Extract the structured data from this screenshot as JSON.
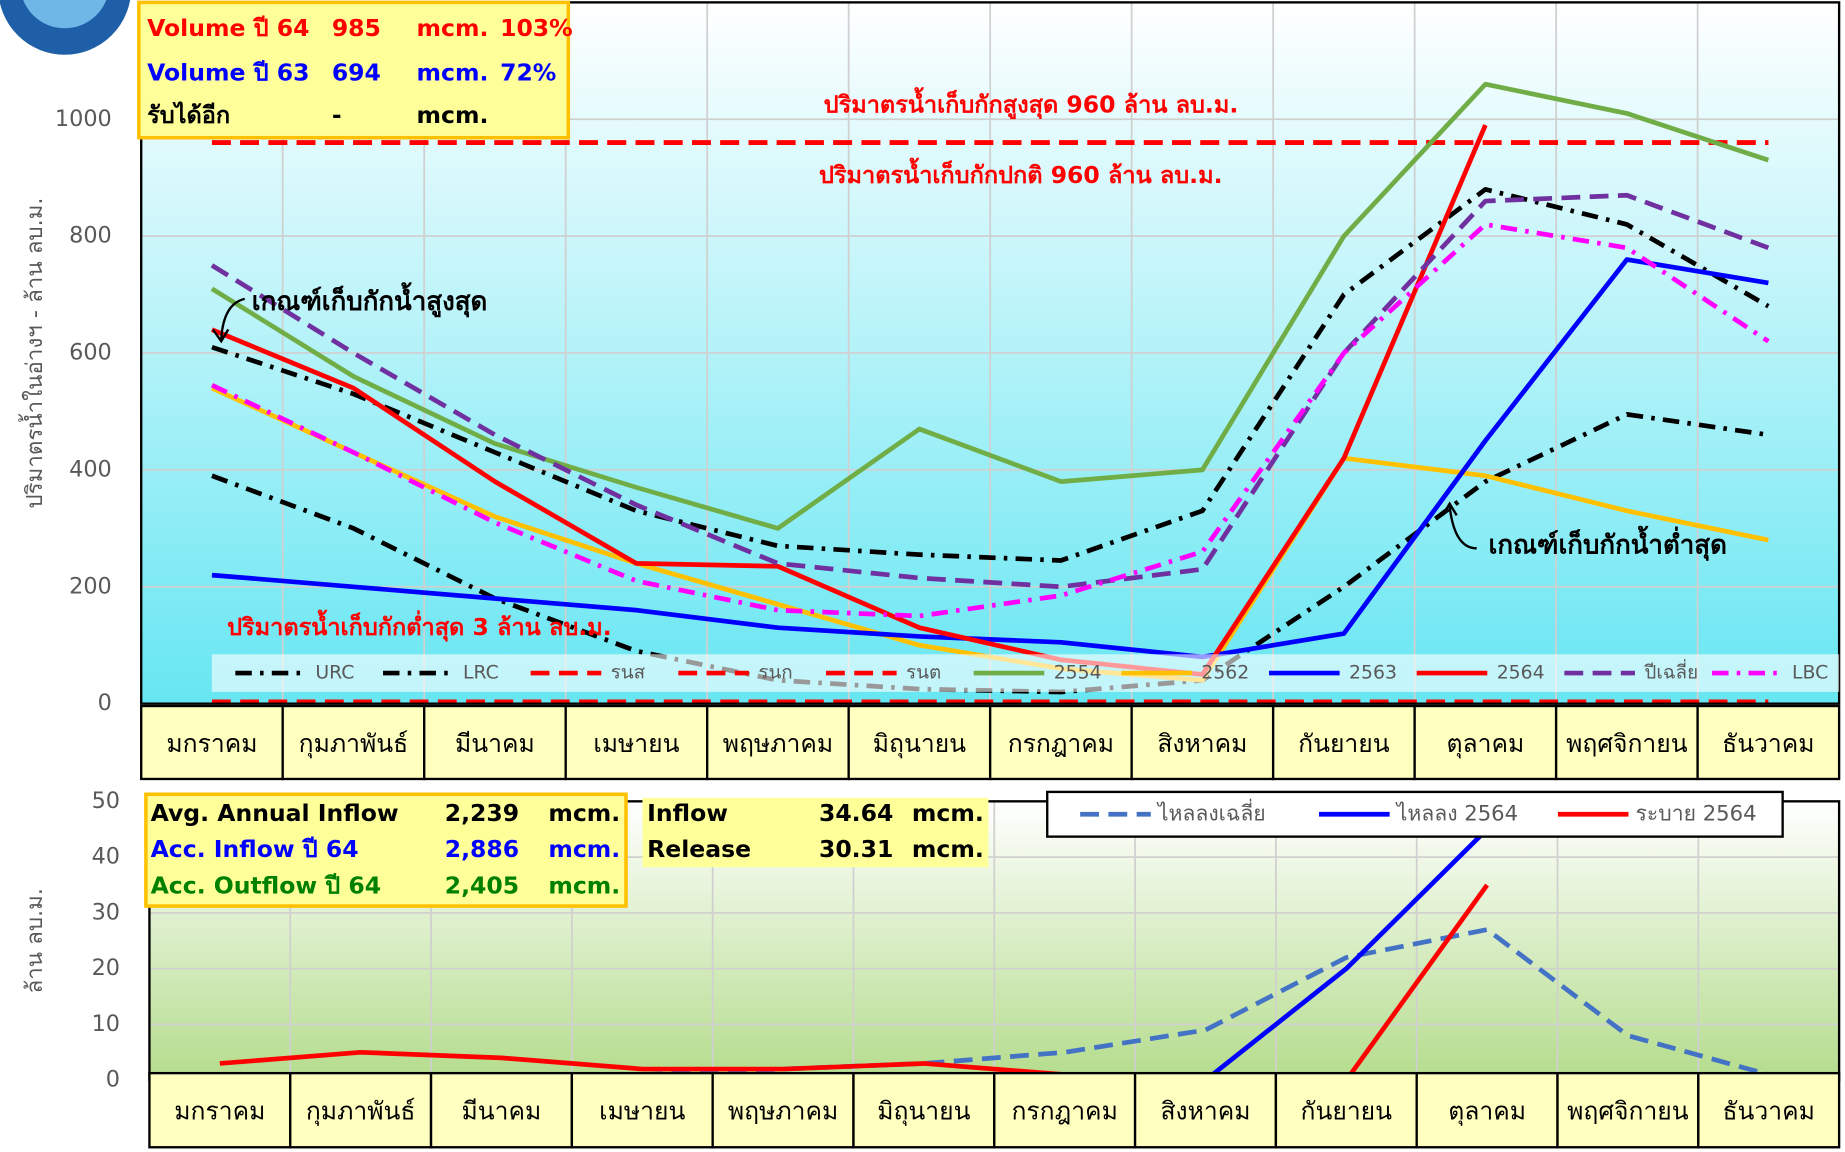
{
  "chart_data": [
    {
      "type": "line",
      "y_label": "ปริมาตรน้ำในอ่างฯ - ล้าน ลบ.ม.",
      "categories": [
        "มกราคม",
        "กุมภาพันธ์",
        "มีนาคม",
        "เมษายน",
        "พฤษภาคม",
        "มิถุนายน",
        "กรกฎาคม",
        "สิงหาคม",
        "กันยายน",
        "ตุลาคม",
        "พฤศจิกายน",
        "ธันวาคม"
      ],
      "ylim": [
        0,
        1200
      ],
      "yticks": [
        0,
        200,
        400,
        600,
        800,
        1000
      ],
      "grid": true,
      "series": [
        {
          "name": "URC",
          "color": "#000000",
          "style": "dashdot",
          "values": [
            610,
            530,
            430,
            330,
            270,
            255,
            245,
            330,
            700,
            880,
            820,
            680
          ]
        },
        {
          "name": "LRC",
          "color": "#000000",
          "style": "dashdot",
          "values": [
            390,
            300,
            180,
            90,
            40,
            25,
            20,
            40,
            200,
            380,
            495,
            460
          ]
        },
        {
          "name": "รนส",
          "color": "#ff0000",
          "style": "dashed",
          "values": [
            960,
            960,
            960,
            960,
            960,
            960,
            960,
            960,
            960,
            960,
            960,
            960
          ]
        },
        {
          "name": "รนก",
          "color": "#ff0000",
          "style": "dashed",
          "values": [
            960,
            960,
            960,
            960,
            960,
            960,
            960,
            960,
            960,
            960,
            960,
            960
          ]
        },
        {
          "name": "รนต",
          "color": "#ff0000",
          "style": "dashed",
          "values": [
            3,
            3,
            3,
            3,
            3,
            3,
            3,
            3,
            3,
            3,
            3,
            3
          ]
        },
        {
          "name": "2554",
          "color": "#70ad47",
          "style": "solid",
          "values": [
            710,
            560,
            445,
            370,
            300,
            470,
            380,
            400,
            800,
            1060,
            1010,
            930
          ]
        },
        {
          "name": "2562",
          "color": "#ffc000",
          "style": "solid",
          "values": [
            540,
            430,
            320,
            240,
            170,
            100,
            60,
            40,
            420,
            390,
            330,
            280
          ]
        },
        {
          "name": "2563",
          "color": "#0000ff",
          "style": "solid",
          "values": [
            220,
            200,
            180,
            160,
            130,
            115,
            105,
            80,
            120,
            450,
            760,
            720
          ]
        },
        {
          "name": "2564",
          "color": "#ff0000",
          "style": "solid",
          "values": [
            640,
            540,
            380,
            240,
            235,
            130,
            75,
            50,
            420,
            990,
            null,
            null
          ]
        },
        {
          "name": "ปีเฉลี่ย",
          "color": "#7030a0",
          "style": "dashed",
          "values": [
            750,
            600,
            460,
            340,
            240,
            215,
            200,
            230,
            600,
            860,
            870,
            780
          ]
        },
        {
          "name": "LBC",
          "color": "#ff00ff",
          "style": "dashdot",
          "values": [
            545,
            430,
            310,
            210,
            160,
            150,
            185,
            260,
            600,
            820,
            780,
            620
          ]
        }
      ],
      "annotations": [
        "ปริมาตรน้ำเก็บกักสูงสุด 960 ล้าน ลบ.ม.",
        "ปริมาตรน้ำเก็บกักปกติ 960 ล้าน ลบ.ม.",
        "ปริมาตรน้ำเก็บกักต่ำสุด 3 ล้าน ลบ.ม.",
        "เกณฑ์เก็บกักน้ำสูงสุด",
        "เกณฑ์เก็บกักน้ำต่ำสุด"
      ],
      "info": {
        "row_colors": [
          "#ff0000",
          "#0000ff",
          "#000000"
        ],
        "rows": [
          [
            "Volume ปี 64",
            "985",
            "mcm.",
            "103%"
          ],
          [
            "Volume ปี 63",
            "694",
            "mcm.",
            "72%"
          ],
          [
            "รับได้อีก",
            "-",
            "mcm."
          ]
        ]
      }
    },
    {
      "type": "line",
      "y_label": "ล้าน ลบ.ม.",
      "categories": [
        "มกราคม",
        "กุมภาพันธ์",
        "มีนาคม",
        "เมษายน",
        "พฤษภาคม",
        "มิถุนายน",
        "กรกฎาคม",
        "สิงหาคม",
        "กันยายน",
        "ตุลาคม",
        "พฤศจิกายน",
        "ธันวาคม"
      ],
      "ylim": [
        0,
        50
      ],
      "yticks": [
        0,
        10,
        20,
        30,
        40,
        50
      ],
      "grid": true,
      "series": [
        {
          "name": "ไหลลงเฉลี่ย",
          "color": "#4472c4",
          "style": "dashed",
          "values": [
            1,
            1,
            1,
            1,
            2,
            3,
            5,
            9,
            22,
            27,
            8,
            1
          ]
        },
        {
          "name": "ไหลลง 2564",
          "color": "#0000ff",
          "style": "solid",
          "values": [
            1,
            1,
            1,
            1,
            1,
            1,
            1,
            0,
            20,
            45,
            null,
            null
          ]
        },
        {
          "name": "ระบาย 2564",
          "color": "#ff0000",
          "style": "solid",
          "values": [
            3,
            5,
            4,
            2,
            2,
            3,
            1,
            1,
            0,
            35,
            null,
            null
          ]
        }
      ],
      "info": {
        "row_colors": [
          "#000000",
          "#0000ff",
          "#008000"
        ],
        "rows": [
          [
            "Avg. Annual Inflow",
            "2,239",
            "mcm."
          ],
          [
            "Acc. Inflow  ปี 64",
            "2,886",
            "mcm."
          ],
          [
            "Acc. Outflow  ปี 64",
            "2,405",
            "mcm."
          ]
        ]
      },
      "info2": {
        "rows": [
          [
            "Inflow",
            "34.64",
            "mcm."
          ],
          [
            "Release",
            "30.31",
            "mcm."
          ]
        ]
      }
    }
  ]
}
